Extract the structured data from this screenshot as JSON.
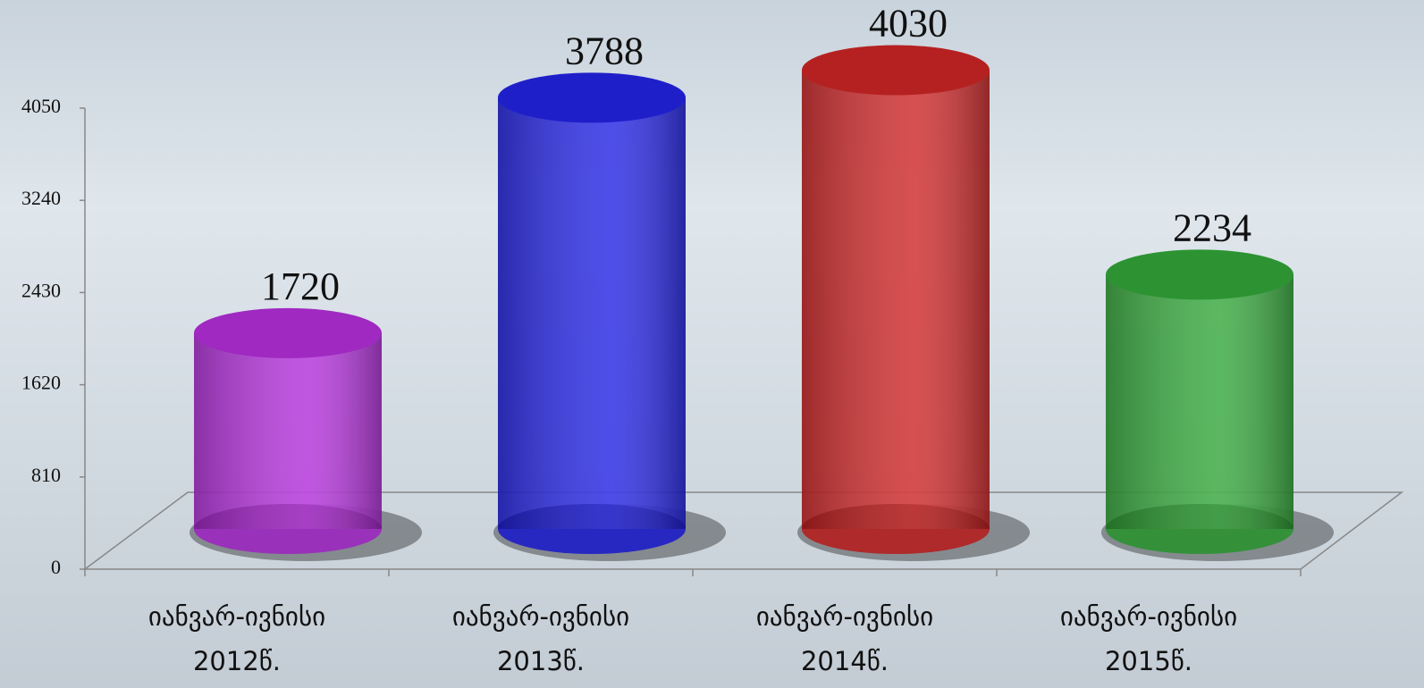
{
  "chart_data": {
    "type": "cylinder",
    "categories": [
      "იანვარ-ივნისი 2012წ.",
      "იანვარ-ივნისი 2013წ.",
      "იანვარ-ივნისი 2014წ.",
      "იანვარ-ივნისი 2015წ."
    ],
    "values": [
      1720,
      3788,
      4030,
      2234
    ],
    "colors": [
      "#b52fdc",
      "#2424e6",
      "#cf2626",
      "#34a83a"
    ],
    "ylim": [
      0,
      4050
    ],
    "yticks": [
      0,
      810,
      1620,
      2430,
      3240,
      4050
    ]
  }
}
